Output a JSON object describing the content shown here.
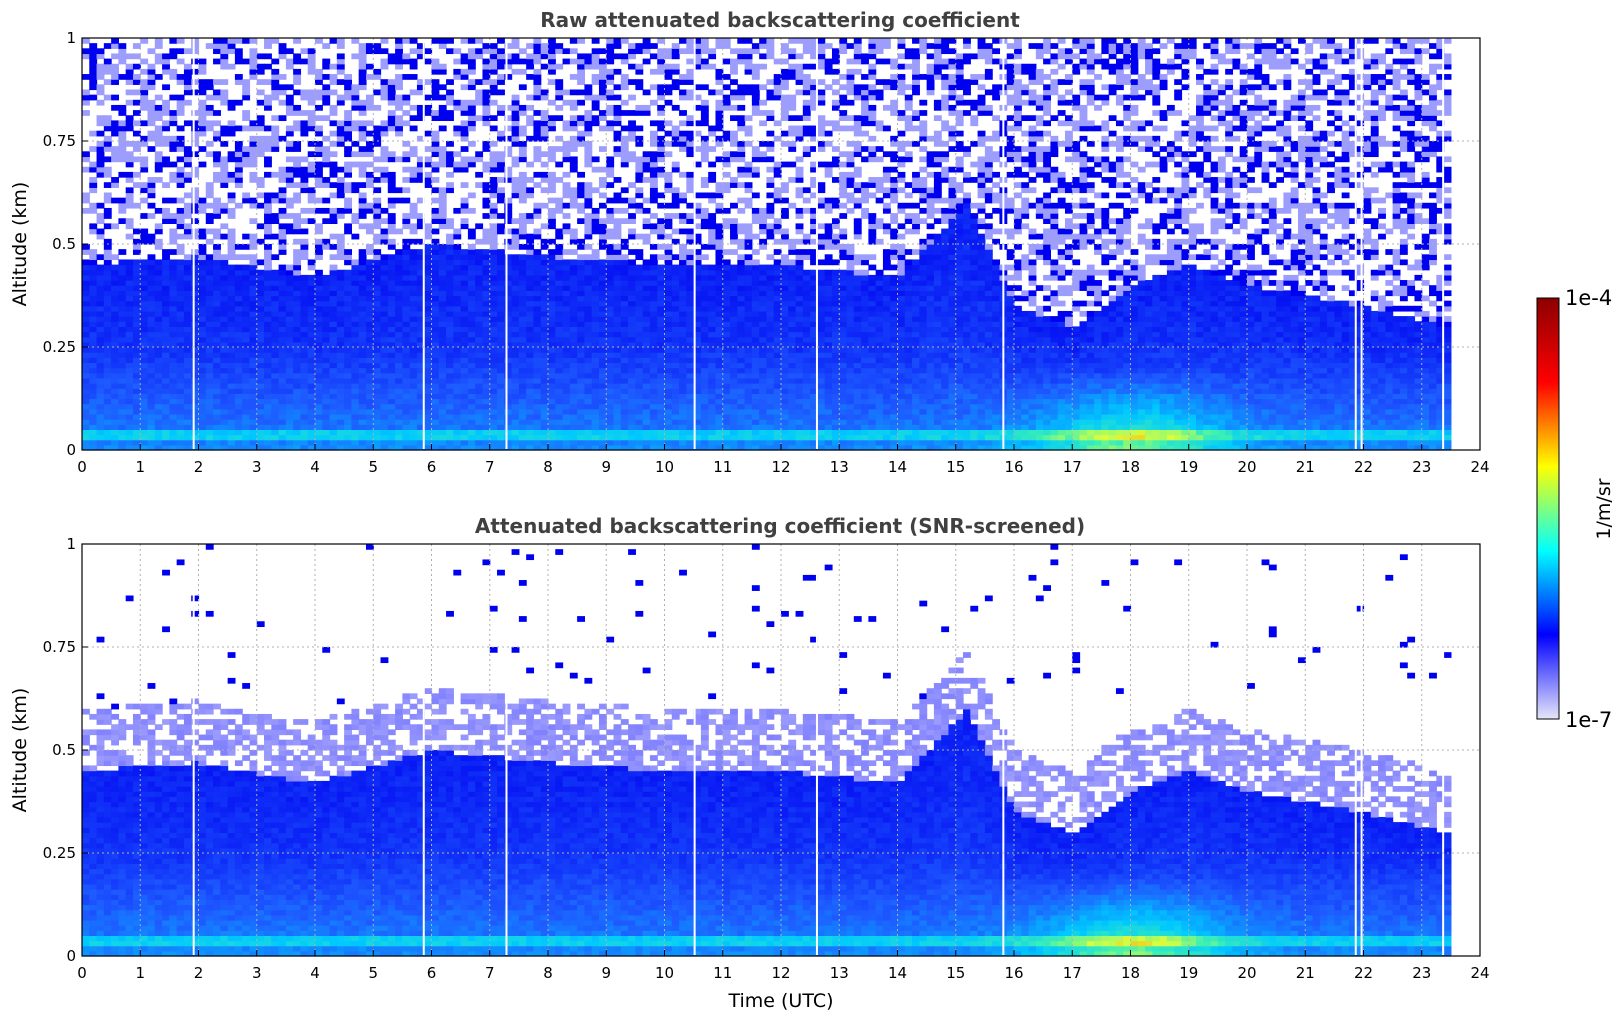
{
  "chart_data": [
    {
      "type": "heatmap",
      "title": "Raw attenuated backscattering coefficient",
      "xlabel": "",
      "ylabel": "Altitude (km)",
      "xlim": [
        0,
        24
      ],
      "ylim": [
        0,
        1
      ],
      "x_ticks": [
        "0",
        "1",
        "2",
        "3",
        "4",
        "5",
        "6",
        "7",
        "8",
        "9",
        "10",
        "11",
        "12",
        "13",
        "14",
        "15",
        "16",
        "17",
        "18",
        "19",
        "20",
        "21",
        "22",
        "23",
        "24"
      ],
      "y_ticks": [
        "0",
        "0.25",
        "0.5",
        "0.75",
        "1"
      ],
      "grid": true,
      "data_end_time": 23.5,
      "gap_times": [
        1.9,
        5.85,
        7.27,
        10.5,
        12.6,
        15.8,
        21.85,
        21.95,
        23.35
      ],
      "description_profile": {
        "dense_layer_top_km": [
          [
            0,
            0.45
          ],
          [
            2,
            0.47
          ],
          [
            4,
            0.42
          ],
          [
            6,
            0.5
          ],
          [
            8,
            0.47
          ],
          [
            10,
            0.45
          ],
          [
            12,
            0.45
          ],
          [
            14,
            0.42
          ],
          [
            15.2,
            0.6
          ],
          [
            16,
            0.35
          ],
          [
            17,
            0.3
          ],
          [
            18,
            0.4
          ],
          [
            19,
            0.45
          ],
          [
            20,
            0.4
          ],
          [
            22,
            0.35
          ],
          [
            23.5,
            0.3
          ]
        ],
        "strong_surface_layer_peak_time": 18
      }
    },
    {
      "type": "heatmap",
      "title": "Attenuated backscattering coefficient (SNR-screened)",
      "xlabel": "Time (UTC)",
      "ylabel": "Altitude (km)",
      "xlim": [
        0,
        24
      ],
      "ylim": [
        0,
        1
      ],
      "x_ticks": [
        "0",
        "1",
        "2",
        "3",
        "4",
        "5",
        "6",
        "7",
        "8",
        "9",
        "10",
        "11",
        "12",
        "13",
        "14",
        "15",
        "16",
        "17",
        "18",
        "19",
        "20",
        "21",
        "22",
        "23",
        "24"
      ],
      "y_ticks": [
        "0",
        "0.25",
        "0.5",
        "0.75",
        "1"
      ],
      "grid": true,
      "data_end_time": 23.5
    }
  ],
  "colorbar": {
    "label": "1/m/sr",
    "max_label": "1e-4",
    "min_label": "1e-7",
    "scale": "log",
    "colormap": [
      "#e6e6fa",
      "#0000ff",
      "#00ffff",
      "#ffff00",
      "#ff0000",
      "#8b0000"
    ]
  }
}
